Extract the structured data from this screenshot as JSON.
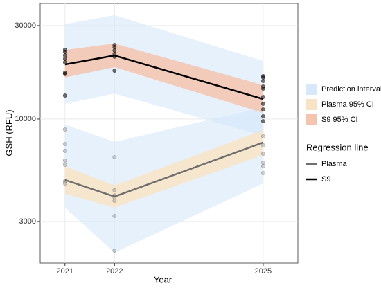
{
  "chart_data": {
    "type": "line",
    "y_label": "GSH (RFU)",
    "x_label": "Year",
    "log_y": true,
    "grid": true,
    "x": [
      2021,
      2022,
      2025
    ],
    "xlim": [
      2020.5,
      2025.7
    ],
    "xticks": [
      2021,
      2022,
      2025
    ],
    "ylim": [
      1840,
      38900
    ],
    "yticks": [
      3000,
      10000,
      30000
    ],
    "legend_position": "right",
    "fill_legend": [
      {
        "name": "Prediction interval",
        "color": "#d6e8fa"
      },
      {
        "name": "Plasma 95% CI",
        "color": "#f8e4c4"
      },
      {
        "name": "S9 95% CI",
        "color": "#f4c4ae"
      }
    ],
    "legend_title": "Regression line",
    "series": [
      {
        "name": "Plasma",
        "color": "#6e6e6e",
        "values": [
          4890,
          4020,
          7590
        ],
        "ci": {
          "lower": [
            4150,
            3530,
            6550
          ],
          "upper": [
            5750,
            4580,
            8780
          ]
        },
        "pi": {
          "lower": [
            3530,
            2080,
            4690
          ],
          "upper": [
            9370,
            7640,
            11480
          ]
        },
        "points": {
          "x": [
            2021,
            2021,
            2021,
            2021,
            2021,
            2021,
            2021,
            2022,
            2022,
            2022,
            2022,
            2022,
            2022,
            2022,
            2025,
            2025,
            2025,
            2025,
            2025,
            2025
          ],
          "y": [
            8850,
            7460,
            6880,
            6140,
            5850,
            4690,
            4810,
            6390,
            4330,
            4080,
            3990,
            3830,
            3200,
            2130,
            8160,
            7340,
            6650,
            5990,
            5750,
            5300
          ]
        }
      },
      {
        "name": "S9",
        "color": "#000000",
        "values": [
          19000,
          21100,
          12650
        ],
        "ci": {
          "lower": [
            16300,
            18400,
            10760
          ],
          "upper": [
            22500,
            24300,
            14900
          ]
        },
        "pi": {
          "lower": [
            11960,
            13500,
            8220
          ],
          "upper": [
            30500,
            33900,
            19800
          ]
        },
        "points": {
          "x": [
            2021,
            2021,
            2021,
            2021,
            2021,
            2021,
            2021,
            2021,
            2022,
            2022,
            2022,
            2022,
            2022,
            2022,
            2025,
            2025,
            2025,
            2025,
            2025,
            2025,
            2025,
            2025,
            2025,
            2025
          ],
          "y": [
            22560,
            22020,
            21140,
            20290,
            19490,
            17250,
            16980,
            13180,
            23880,
            23290,
            22390,
            21480,
            20800,
            17660,
            16560,
            16290,
            15630,
            14660,
            14290,
            12970,
            11960,
            11200,
            10330,
            9750
          ]
        }
      }
    ]
  }
}
